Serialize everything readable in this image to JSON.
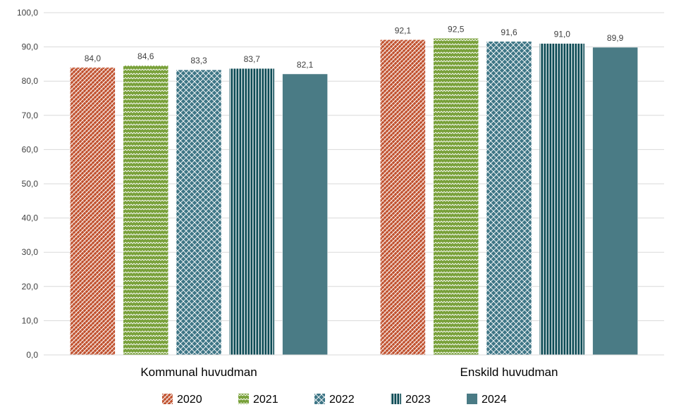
{
  "chart_data": {
    "type": "bar",
    "categories": [
      "Kommunal huvudman",
      "Enskild huvudman"
    ],
    "series": [
      {
        "name": "2020",
        "values": [
          84.0,
          92.1
        ],
        "labels": [
          "84,0",
          "92,1"
        ],
        "color": "#c0502d",
        "pattern": "diagonal-check"
      },
      {
        "name": "2021",
        "values": [
          84.6,
          92.5
        ],
        "labels": [
          "84,6",
          "92,5"
        ],
        "color": "#79a13a",
        "pattern": "zigzag"
      },
      {
        "name": "2022",
        "values": [
          83.3,
          91.6
        ],
        "labels": [
          "83,3",
          "91,6"
        ],
        "color": "#3e7686",
        "pattern": "diamond-lattice"
      },
      {
        "name": "2023",
        "values": [
          83.7,
          91.0
        ],
        "labels": [
          "83,7",
          "91,0"
        ],
        "color": "#0c4b55",
        "pattern": "vertical-stripes"
      },
      {
        "name": "2024",
        "values": [
          82.1,
          89.9
        ],
        "labels": [
          "82,1",
          "89,9"
        ],
        "color": "#4a7b85",
        "pattern": "solid"
      }
    ],
    "y_ticks": [
      "0,0",
      "10,0",
      "20,0",
      "30,0",
      "40,0",
      "50,0",
      "60,0",
      "70,0",
      "80,0",
      "90,0",
      "100,0"
    ],
    "ylim": [
      0,
      100
    ],
    "grid": true,
    "legend_position": "bottom"
  }
}
